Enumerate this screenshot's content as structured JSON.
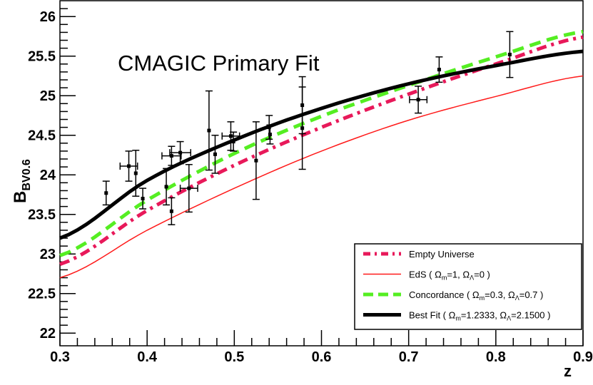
{
  "chart_data": {
    "type": "scatter",
    "title": "CMAGIC Primary Fit",
    "xlabel": "z",
    "ylabel": "B",
    "ylabel_sub": "BV0.6",
    "xlim": [
      0.3,
      0.9
    ],
    "ylim": [
      21.84,
      26.2
    ],
    "xticks": [
      "0.3",
      "0.4",
      "0.5",
      "0.6",
      "0.7",
      "0.8",
      "0.9"
    ],
    "yticks": [
      "22",
      "22.5",
      "23",
      "23.5",
      "24",
      "24.5",
      "25",
      "25.5",
      "26"
    ],
    "grid": false,
    "legend_placement": "bottom-right",
    "points": [
      {
        "x": 0.353,
        "y": 23.77,
        "xerr": 0,
        "yerr": 0.15
      },
      {
        "x": 0.379,
        "y": 24.11,
        "xerr": 0.01,
        "yerr": 0.19
      },
      {
        "x": 0.387,
        "y": 24.02,
        "xerr": 0,
        "yerr": 0.29
      },
      {
        "x": 0.395,
        "y": 23.7,
        "xerr": 0,
        "yerr": 0.13
      },
      {
        "x": 0.422,
        "y": 23.85,
        "xerr": 0,
        "yerr": 0.23
      },
      {
        "x": 0.428,
        "y": 24.24,
        "xerr": 0.011,
        "yerr": 0.12
      },
      {
        "x": 0.428,
        "y": 23.54,
        "xerr": 0,
        "yerr": 0.17
      },
      {
        "x": 0.438,
        "y": 24.28,
        "xerr": 0.012,
        "yerr": 0.14
      },
      {
        "x": 0.448,
        "y": 23.83,
        "xerr": 0.01,
        "yerr": 0.3
      },
      {
        "x": 0.471,
        "y": 24.56,
        "xerr": 0,
        "yerr": 0.5
      },
      {
        "x": 0.478,
        "y": 24.26,
        "xerr": 0,
        "yerr": 0.24
      },
      {
        "x": 0.496,
        "y": 24.49,
        "xerr": 0.01,
        "yerr": 0.18
      },
      {
        "x": 0.499,
        "y": 24.42,
        "xerr": 0,
        "yerr": 0.12
      },
      {
        "x": 0.525,
        "y": 24.18,
        "xerr": 0,
        "yerr": 0.49
      },
      {
        "x": 0.54,
        "y": 24.6,
        "xerr": 0,
        "yerr": 0.15
      },
      {
        "x": 0.541,
        "y": 24.51,
        "xerr": 0,
        "yerr": 0.12
      },
      {
        "x": 0.578,
        "y": 24.88,
        "xerr": 0,
        "yerr": 0.36
      },
      {
        "x": 0.578,
        "y": 24.59,
        "xerr": 0,
        "yerr": 0.52
      },
      {
        "x": 0.711,
        "y": 24.95,
        "xerr": 0.01,
        "yerr": 0.17
      },
      {
        "x": 0.735,
        "y": 25.33,
        "xerr": 0,
        "yerr": 0.16
      },
      {
        "x": 0.816,
        "y": 25.52,
        "xerr": 0,
        "yerr": 0.29
      }
    ],
    "series": [
      {
        "name": "Empty Universe",
        "color": "#e8195a",
        "style": "dashdot",
        "x": [
          0.3,
          0.4,
          0.5,
          0.6,
          0.7,
          0.8,
          0.9
        ],
        "y": [
          22.87,
          23.55,
          24.12,
          24.6,
          25.02,
          25.4,
          25.74
        ]
      },
      {
        "name": "EdS ( Ωm=1, ΩΛ=0 )",
        "color": "#ff1a1a",
        "style": "thin",
        "x": [
          0.3,
          0.4,
          0.5,
          0.6,
          0.7,
          0.8,
          0.9
        ],
        "y": [
          22.7,
          23.3,
          23.83,
          24.3,
          24.69,
          24.99,
          25.25
        ]
      },
      {
        "name": "Concordance ( Ωm=0.3, ΩΛ=0.7 )",
        "color": "#55ee22",
        "style": "dashed",
        "x": [
          0.3,
          0.4,
          0.5,
          0.6,
          0.7,
          0.8,
          0.9
        ],
        "y": [
          22.98,
          23.68,
          24.27,
          24.74,
          25.13,
          25.49,
          25.81
        ]
      },
      {
        "name": "Best Fit ( Ωm=1.2333, ΩΛ=2.1500 )",
        "color": "#000000",
        "style": "thick",
        "x": [
          0.3,
          0.4,
          0.5,
          0.6,
          0.7,
          0.8,
          0.9
        ],
        "y": [
          23.2,
          23.93,
          24.44,
          24.84,
          25.15,
          25.38,
          25.56
        ]
      }
    ],
    "legend": [
      {
        "label": "Empty Universe",
        "main": "Empty Universe"
      },
      {
        "label": "EdS ( Ωm=1, ΩΛ=0 )",
        "main": "EdS ( Ω",
        "p1": "m",
        "p2": "=1, Ω",
        "p3": "Λ",
        "p4": "=0 )"
      },
      {
        "label": "Concordance ( Ωm=0.3, ΩΛ=0.7 )",
        "main": "Concordance ( Ω",
        "p1": "m",
        "p2": "=0.3, Ω",
        "p3": "Λ",
        "p4": "=0.7 )"
      },
      {
        "label": "Best Fit ( Ωm=1.2333, ΩΛ=2.1500 )",
        "main": "Best Fit ( Ω",
        "p1": "m",
        "p2": "=1.2333, Ω",
        "p3": "Λ",
        "p4": "=2.1500 )"
      }
    ]
  }
}
